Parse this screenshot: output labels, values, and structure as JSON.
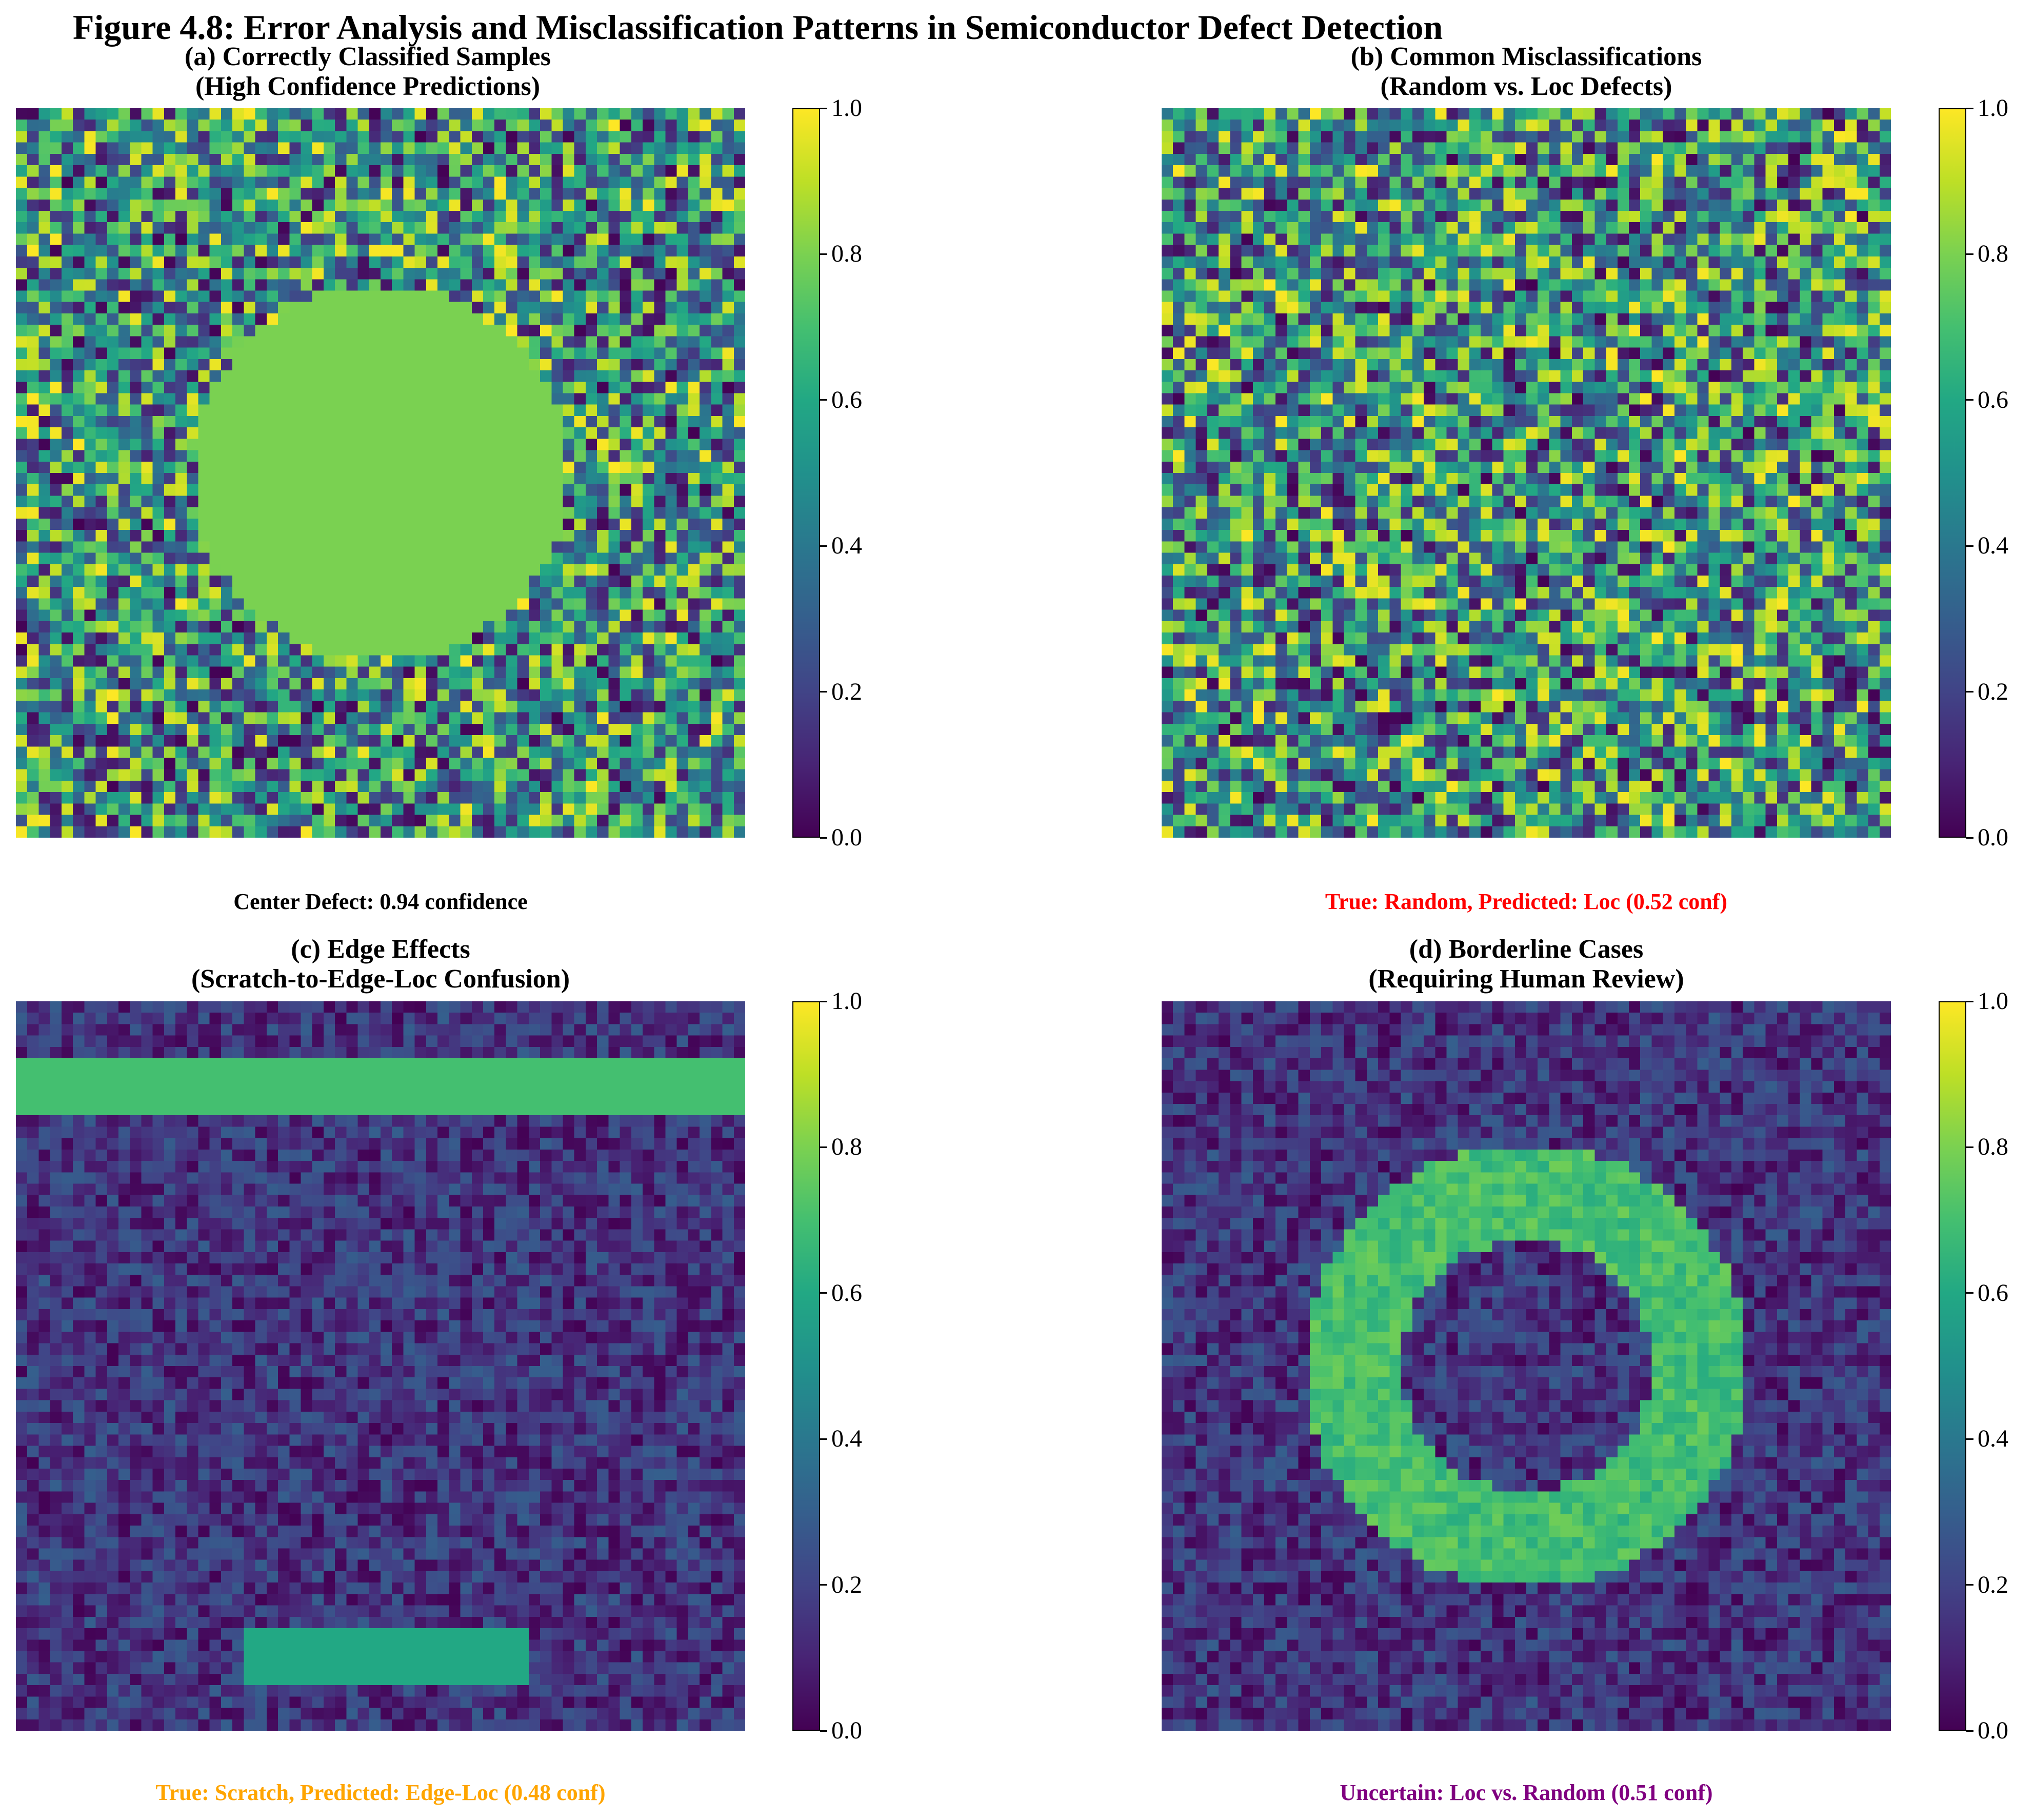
{
  "figure": {
    "title": "Figure 4.8: Error Analysis and Misclassification Patterns in Semiconductor Defect Detection"
  },
  "chart_data": [
    {
      "type": "heatmap",
      "title": "(a) Correctly Classified Samples\n(High Confidence Predictions)",
      "title_lines": [
        "(a) Correctly Classified Samples",
        "(High Confidence Predictions)"
      ],
      "caption": "Center Defect: 0.94 confidence",
      "caption_color": "#000000",
      "grid_size": [
        64,
        64
      ],
      "colormap": "viridis",
      "value_range": [
        0,
        1
      ],
      "pattern": "center",
      "pattern_value": 0.8,
      "background": "uniform random noise 0-1",
      "colorbar_ticks": [
        "0.0",
        "0.2",
        "0.4",
        "0.6",
        "0.8",
        "1.0"
      ]
    },
    {
      "type": "heatmap",
      "title": "(b) Common Misclassifications\n(Random vs. Loc Defects)",
      "title_lines": [
        "(b) Common Misclassifications",
        "(Random vs. Loc Defects)"
      ],
      "caption": "True: Random, Predicted: Loc (0.52 conf)",
      "caption_color": "#ff0000",
      "grid_size": [
        64,
        64
      ],
      "colormap": "viridis",
      "value_range": [
        0,
        1
      ],
      "pattern": "random",
      "background": "uniform random noise 0-1",
      "colorbar_ticks": [
        "0.0",
        "0.2",
        "0.4",
        "0.6",
        "0.8",
        "1.0"
      ]
    },
    {
      "type": "heatmap",
      "title": "(c) Edge Effects\n(Scratch-to-Edge-Loc Confusion)",
      "title_lines": [
        "(c) Edge Effects",
        "(Scratch-to-Edge-Loc Confusion)"
      ],
      "caption": "True: Scratch, Predicted: Edge-Loc (0.48 conf)",
      "caption_color": "#ffa500",
      "grid_size": [
        64,
        64
      ],
      "colormap": "viridis",
      "value_range": [
        0,
        1
      ],
      "pattern": "edge-scratch",
      "pattern_values": {
        "edge_band": 0.7,
        "scratch": 0.6
      },
      "background": "low noise 0-0.3",
      "colorbar_ticks": [
        "0.0",
        "0.2",
        "0.4",
        "0.6",
        "0.8",
        "1.0"
      ]
    },
    {
      "type": "heatmap",
      "title": "(d) Borderline Cases\n(Requiring Human Review)",
      "title_lines": [
        "(d) Borderline Cases",
        "(Requiring Human Review)"
      ],
      "caption": "Uncertain: Loc vs. Random (0.51 conf)",
      "caption_color": "#800080",
      "grid_size": [
        64,
        64
      ],
      "colormap": "viridis",
      "value_range": [
        0,
        1
      ],
      "pattern": "donut",
      "pattern_value": 0.7,
      "background": "low noise 0-0.3",
      "colorbar_ticks": [
        "0.0",
        "0.2",
        "0.4",
        "0.6",
        "0.8",
        "1.0"
      ]
    }
  ]
}
